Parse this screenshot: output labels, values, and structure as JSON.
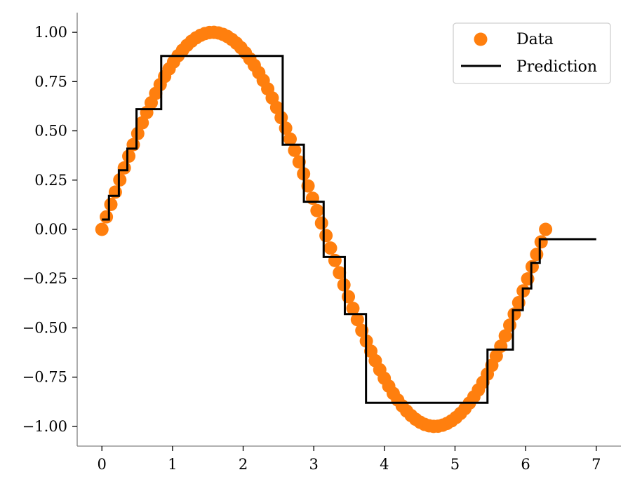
{
  "chart_data": {
    "type": "scatter",
    "title": "",
    "xlabel": "",
    "ylabel": "",
    "xlim": [
      -0.35,
      7.35
    ],
    "ylim": [
      -1.1,
      1.1
    ],
    "x_ticks": [
      0,
      1,
      2,
      3,
      4,
      5,
      6,
      7
    ],
    "x_tick_labels": [
      "0",
      "1",
      "2",
      "3",
      "4",
      "5",
      "6",
      "7"
    ],
    "y_ticks": [
      1.0,
      0.75,
      0.5,
      0.25,
      0.0,
      -0.25,
      -0.5,
      -0.75,
      -1.0
    ],
    "y_tick_labels": [
      "1.00",
      "0.75",
      "0.50",
      "0.25",
      "0.00",
      "−0.25",
      "−0.50",
      "−0.75",
      "−1.00"
    ],
    "grid": false,
    "legend_placement": "top-right",
    "series": [
      {
        "name": "Data",
        "kind": "scatter",
        "color": "#ff7f0e",
        "function": "sin(x)",
        "x_range": [
          0,
          6.283
        ],
        "n_points": 100
      },
      {
        "name": "Prediction",
        "kind": "step-line",
        "color": "#000000",
        "x": [
          0.0,
          0.1,
          0.1,
          0.24,
          0.24,
          0.36,
          0.36,
          0.49,
          0.49,
          0.84,
          0.84,
          2.56,
          2.56,
          2.86,
          2.86,
          3.14,
          3.14,
          3.44,
          3.44,
          3.74,
          3.74,
          5.46,
          5.46,
          5.82,
          5.82,
          5.96,
          5.96,
          6.08,
          6.08,
          6.2,
          6.2,
          7.0
        ],
        "y": [
          0.05,
          0.05,
          0.17,
          0.17,
          0.3,
          0.3,
          0.41,
          0.41,
          0.61,
          0.61,
          0.88,
          0.88,
          0.43,
          0.43,
          0.14,
          0.14,
          -0.14,
          -0.14,
          -0.43,
          -0.43,
          -0.88,
          -0.88,
          -0.61,
          -0.61,
          -0.41,
          -0.41,
          -0.3,
          -0.3,
          -0.17,
          -0.17,
          -0.05,
          -0.05
        ]
      }
    ]
  }
}
